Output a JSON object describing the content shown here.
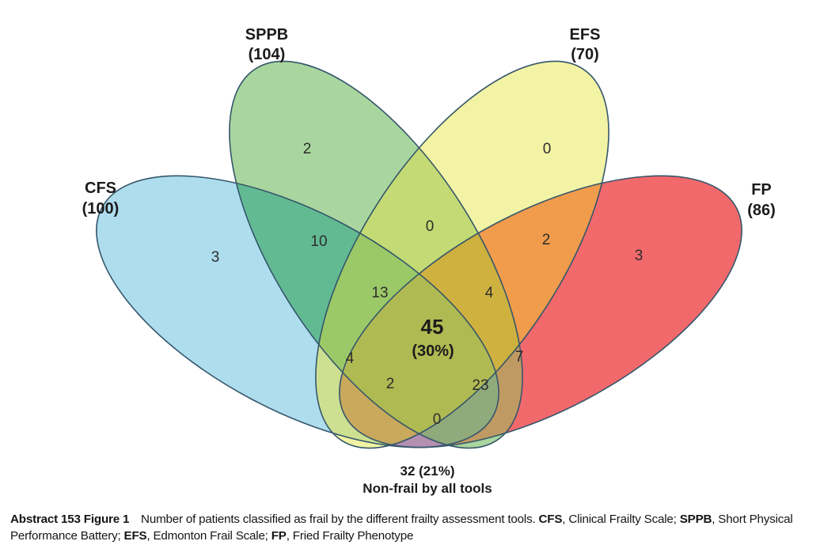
{
  "venn": {
    "sets": {
      "cfs": {
        "label": "CFS",
        "count_label": "(100)"
      },
      "sppb": {
        "label": "SPPB",
        "count_label": "(104)"
      },
      "efs": {
        "label": "EFS",
        "count_label": "(70)"
      },
      "fp": {
        "label": "FP",
        "count_label": "(86)"
      }
    },
    "regions": {
      "cfs_only": "3",
      "sppb_only": "2",
      "efs_only": "0",
      "fp_only": "3",
      "cfs_sppb": "10",
      "cfs_efs": "4",
      "cfs_fp": "0",
      "sppb_efs": "0",
      "sppb_fp": "7",
      "efs_fp": "2",
      "cfs_sppb_efs": "13",
      "sppb_efs_fp": "4",
      "cfs_efs_fp": "2",
      "cfs_sppb_fp": "23",
      "all_count": "45",
      "all_pct": "(30%)"
    },
    "non_frail": {
      "line1": "32 (21%)",
      "line2": "Non-frail by all tools"
    },
    "colors": {
      "stroke": "#35566b",
      "cfs_only": "#aeddee",
      "sppb_only": "#a9d69e",
      "efs_only": "#f2f3a4",
      "fp_only": "#f2696c",
      "cfs_sppb": "#62ba92",
      "cfs_efs": "#cde091",
      "cfs_fp": "#b38fb0",
      "sppb_efs": "#c4da74",
      "sppb_fp": "#c09a63",
      "efs_fp": "#f09c4c",
      "cfs_sppb_efs": "#9cc968",
      "sppb_efs_fp": "#cfb13f",
      "cfs_efs_fp": "#c9a95c",
      "cfs_sppb_fp": "#90aa7c",
      "all": "#b0ba52"
    }
  },
  "caption": {
    "segments": [
      {
        "text": "Abstract 153 Figure 1",
        "bold": true
      },
      {
        "text": "  Number of patients classified as frail by the different frailty assessment tools. ",
        "bold": false
      },
      {
        "text": "CFS",
        "bold": true
      },
      {
        "text": ", Clinical Frailty Scale; ",
        "bold": false
      },
      {
        "text": "SPPB",
        "bold": true
      },
      {
        "text": ", Short Physical Performance Battery; ",
        "bold": false
      },
      {
        "text": "EFS",
        "bold": true
      },
      {
        "text": ", Edmonton Frail Scale; ",
        "bold": false
      },
      {
        "text": "FP",
        "bold": true
      },
      {
        "text": ", Fried Frailty Phenotype",
        "bold": false
      }
    ]
  }
}
